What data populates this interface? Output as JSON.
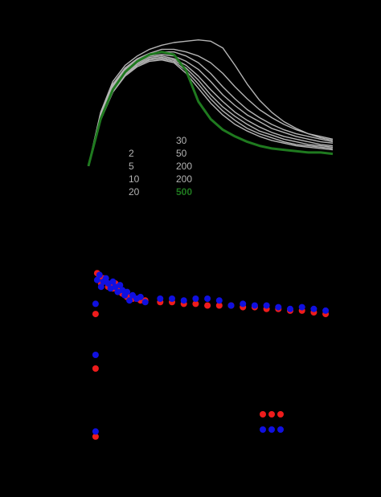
{
  "colors": {
    "background": "#000000",
    "gray": "#b4b4b4",
    "green": "#1f7a1f",
    "red": "#ee1c1c",
    "blue": "#1010e0"
  },
  "chart_data": [
    {
      "type": "line",
      "title": "",
      "xlabel": "",
      "ylabel": "",
      "legend": {
        "placement": "bottom-center",
        "left_column": [
          "2",
          "5",
          "10",
          "20"
        ],
        "right_column": [
          "30",
          "50",
          "200",
          "200",
          "500"
        ],
        "highlighted": "500"
      },
      "x": [
        0,
        0.05,
        0.1,
        0.15,
        0.2,
        0.25,
        0.3,
        0.35,
        0.4,
        0.45,
        0.5,
        0.55,
        0.6,
        0.65,
        0.7,
        0.75,
        0.8,
        0.85,
        0.9,
        0.95,
        1.0
      ],
      "xlim": [
        0,
        1
      ],
      "ylim": [
        0,
        1
      ],
      "series": [
        {
          "color": "gray",
          "values": [
            0.05,
            0.45,
            0.68,
            0.8,
            0.87,
            0.92,
            0.95,
            0.97,
            0.98,
            0.99,
            0.98,
            0.93,
            0.8,
            0.66,
            0.54,
            0.45,
            0.38,
            0.33,
            0.29,
            0.26,
            0.24
          ]
        },
        {
          "color": "gray",
          "values": [
            0.05,
            0.44,
            0.66,
            0.78,
            0.85,
            0.89,
            0.92,
            0.92,
            0.9,
            0.87,
            0.82,
            0.74,
            0.64,
            0.55,
            0.47,
            0.41,
            0.36,
            0.32,
            0.29,
            0.27,
            0.25
          ]
        },
        {
          "color": "gray",
          "values": [
            0.05,
            0.43,
            0.65,
            0.77,
            0.84,
            0.88,
            0.9,
            0.9,
            0.87,
            0.82,
            0.74,
            0.64,
            0.55,
            0.47,
            0.41,
            0.36,
            0.32,
            0.29,
            0.27,
            0.25,
            0.23
          ]
        },
        {
          "color": "gray",
          "values": [
            0.05,
            0.42,
            0.64,
            0.76,
            0.83,
            0.87,
            0.88,
            0.87,
            0.83,
            0.77,
            0.68,
            0.58,
            0.5,
            0.43,
            0.38,
            0.33,
            0.3,
            0.27,
            0.25,
            0.23,
            0.22
          ]
        },
        {
          "color": "gray",
          "values": [
            0.05,
            0.41,
            0.63,
            0.75,
            0.82,
            0.86,
            0.87,
            0.85,
            0.8,
            0.72,
            0.62,
            0.53,
            0.45,
            0.39,
            0.34,
            0.3,
            0.27,
            0.25,
            0.23,
            0.21,
            0.2
          ]
        },
        {
          "color": "gray",
          "values": [
            0.05,
            0.4,
            0.62,
            0.74,
            0.81,
            0.85,
            0.86,
            0.84,
            0.78,
            0.69,
            0.58,
            0.49,
            0.42,
            0.36,
            0.31,
            0.28,
            0.25,
            0.23,
            0.21,
            0.2,
            0.19
          ]
        },
        {
          "color": "gray",
          "values": [
            0.05,
            0.4,
            0.61,
            0.73,
            0.8,
            0.84,
            0.85,
            0.83,
            0.76,
            0.66,
            0.55,
            0.46,
            0.39,
            0.33,
            0.29,
            0.26,
            0.23,
            0.21,
            0.2,
            0.19,
            0.18
          ]
        },
        {
          "color": "gray",
          "values": [
            0.05,
            0.39,
            0.6,
            0.72,
            0.79,
            0.83,
            0.84,
            0.82,
            0.74,
            0.63,
            0.52,
            0.43,
            0.36,
            0.31,
            0.27,
            0.24,
            0.22,
            0.2,
            0.19,
            0.18,
            0.17
          ]
        },
        {
          "color": "green",
          "values": [
            0.05,
            0.4,
            0.62,
            0.75,
            0.83,
            0.88,
            0.9,
            0.88,
            0.76,
            0.53,
            0.4,
            0.32,
            0.27,
            0.23,
            0.2,
            0.18,
            0.17,
            0.16,
            0.15,
            0.15,
            0.14
          ]
        }
      ]
    },
    {
      "type": "scatter",
      "title": "",
      "xlabel": "",
      "ylabel": "",
      "legend": {
        "placement": "bottom-right",
        "entries": [
          {
            "color": "red",
            "label": ""
          },
          {
            "color": "blue",
            "label": ""
          }
        ]
      },
      "xlim": [
        0,
        30
      ],
      "ylim": [
        0,
        1
      ],
      "series": [
        {
          "color": "red",
          "x": [
            0.5,
            0.8,
            1.0,
            1.3,
            1.6,
            1.9,
            2.2,
            2.5,
            2.8,
            3.1,
            3.4,
            3.7,
            4.0,
            4.3,
            4.6,
            5.0,
            5.5,
            6.0,
            6.6,
            8.5,
            10,
            11.5,
            13,
            14.5,
            16,
            17.5,
            19,
            20.5,
            22,
            23.5,
            25,
            26.5,
            28,
            29.5,
            0.3,
            0.3,
            0.3
          ],
          "y": [
            0.98,
            0.96,
            0.92,
            0.95,
            0.93,
            0.9,
            0.91,
            0.89,
            0.92,
            0.88,
            0.87,
            0.86,
            0.86,
            0.84,
            0.84,
            0.83,
            0.83,
            0.82,
            0.82,
            0.81,
            0.81,
            0.8,
            0.8,
            0.79,
            0.79,
            0.79,
            0.78,
            0.78,
            0.77,
            0.77,
            0.76,
            0.76,
            0.75,
            0.74,
            0.74,
            0.42,
            0.02
          ]
        },
        {
          "color": "blue",
          "x": [
            0.5,
            0.8,
            1.0,
            1.3,
            1.6,
            1.9,
            2.2,
            2.5,
            2.8,
            3.1,
            3.4,
            3.7,
            4.0,
            4.3,
            4.6,
            5.0,
            5.5,
            6.0,
            6.6,
            8.5,
            10,
            11.5,
            13,
            14.5,
            16,
            17.5,
            19,
            20.5,
            22,
            23.5,
            25,
            26.5,
            28,
            29.5,
            0.3,
            0.3,
            0.3
          ],
          "y": [
            0.94,
            0.97,
            0.9,
            0.93,
            0.95,
            0.92,
            0.89,
            0.93,
            0.9,
            0.87,
            0.91,
            0.88,
            0.85,
            0.87,
            0.82,
            0.85,
            0.83,
            0.84,
            0.81,
            0.83,
            0.83,
            0.82,
            0.83,
            0.83,
            0.82,
            0.79,
            0.8,
            0.79,
            0.79,
            0.78,
            0.77,
            0.78,
            0.77,
            0.76,
            0.8,
            0.5,
            0.05
          ]
        }
      ]
    }
  ]
}
